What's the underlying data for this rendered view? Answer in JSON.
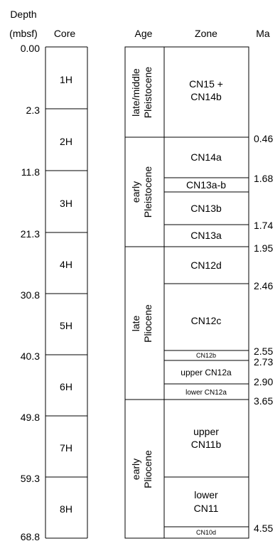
{
  "headers": {
    "depth": [
      "Depth",
      "(mbsf)"
    ],
    "core": "Core",
    "age": "Age",
    "zone": "Zone",
    "ma": "Ma"
  },
  "depths": [
    "0.00",
    "2.3",
    "11.8",
    "21.3",
    "30.8",
    "40.3",
    "49.8",
    "59.3",
    "68.8"
  ],
  "cores": [
    "1H",
    "2H",
    "3H",
    "4H",
    "5H",
    "6H",
    "7H",
    "8H"
  ],
  "ages": [
    [
      "late/middle",
      "Pleistocene"
    ],
    [
      "early",
      "Pleistocene"
    ],
    [
      "late",
      "Pliocene"
    ],
    [
      "early",
      "Pliocene"
    ]
  ],
  "zones": [
    [
      "CN15 +",
      "CN14b"
    ],
    [
      "CN14a"
    ],
    [
      "CN13a-b"
    ],
    [
      "CN13b"
    ],
    [
      "CN13a"
    ],
    [
      "CN12d"
    ],
    [
      "CN12c"
    ],
    [
      "CN12b"
    ],
    [
      "upper CN12a"
    ],
    [
      "lower CN12a"
    ],
    [
      "upper",
      "CN11b"
    ],
    [
      "lower",
      "CN11"
    ],
    [
      "CN10d"
    ]
  ],
  "ma": [
    "0.46",
    "1.68",
    "1.74",
    "1.95",
    "2.46",
    "2.55",
    "2.73",
    "2.90",
    "3.65",
    "4.55"
  ]
}
